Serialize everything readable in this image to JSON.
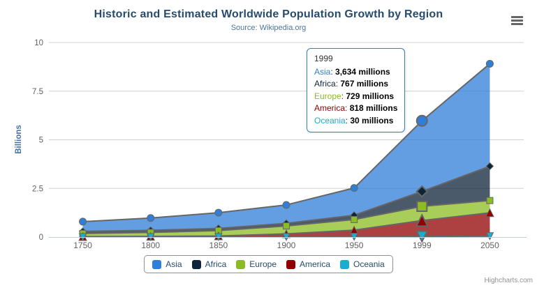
{
  "header": {
    "title": "Historic and Estimated Worldwide Population Growth by Region",
    "subtitle": "Source: Wikipedia.org"
  },
  "credits": "Highcharts.com",
  "y_axis": {
    "title": "Billions",
    "tick_labels": [
      "0",
      "2.5",
      "5",
      "7.5",
      "10"
    ]
  },
  "x_axis": {
    "tick_labels": [
      "1750",
      "1800",
      "1850",
      "1900",
      "1950",
      "1999",
      "2050"
    ]
  },
  "tooltip": {
    "header": "1999",
    "rows": [
      {
        "name": "Asia",
        "value": "3,634 millions",
        "color": "#2f7ed8"
      },
      {
        "name": "Africa",
        "value": "767 millions",
        "color": "#0d233a"
      },
      {
        "name": "Europe",
        "value": "729 millions",
        "color": "#8bbc21"
      },
      {
        "name": "America",
        "value": "818 millions",
        "color": "#910000"
      },
      {
        "name": "Oceania",
        "value": "30 millions",
        "color": "#1aadce"
      }
    ]
  },
  "legend": {
    "items": [
      {
        "label": "Asia",
        "color": "#2f7ed8"
      },
      {
        "label": "Africa",
        "color": "#0d233a"
      },
      {
        "label": "Europe",
        "color": "#8bbc21"
      },
      {
        "label": "America",
        "color": "#910000"
      },
      {
        "label": "Oceania",
        "color": "#1aadce"
      }
    ]
  },
  "colors": {
    "title": "#274b6d",
    "subtitle": "#4d759e",
    "axis_label": "#606060",
    "y_axis_title": "#4572a7",
    "gridline": "#d0d0d0",
    "x_axis_line": "#c0d0e0",
    "series_line": "#666666",
    "legend_border": "#909090",
    "tooltip_border": "#2f7ed8",
    "credits": "#909090",
    "export_icon": "#666666"
  },
  "chart_data": {
    "type": "area",
    "stacking": "normal",
    "title": "Historic and Estimated Worldwide Population Growth by Region",
    "subtitle": "Source: Wikipedia.org",
    "xlabel": "",
    "ylabel": "Billions",
    "unit": "millions",
    "ylim": [
      0,
      10
    ],
    "y_ticks": [
      0,
      2.5,
      5,
      7.5,
      10
    ],
    "grid": true,
    "legend_position": "bottom",
    "categories": [
      "1750",
      "1800",
      "1850",
      "1900",
      "1950",
      "1999",
      "2050"
    ],
    "series": [
      {
        "name": "Asia",
        "color": "#2f7ed8",
        "marker": "circle",
        "values": [
          502,
          635,
          809,
          947,
          1402,
          3634,
          5268
        ]
      },
      {
        "name": "Africa",
        "color": "#0d233a",
        "marker": "diamond",
        "values": [
          106,
          107,
          111,
          133,
          221,
          767,
          1766
        ]
      },
      {
        "name": "Europe",
        "color": "#8bbc21",
        "marker": "square",
        "values": [
          163,
          203,
          276,
          408,
          547,
          729,
          628
        ]
      },
      {
        "name": "America",
        "color": "#910000",
        "marker": "triangle",
        "values": [
          18,
          31,
          54,
          156,
          339,
          818,
          1201
        ]
      },
      {
        "name": "Oceania",
        "color": "#1aadce",
        "marker": "triangle-down",
        "values": [
          2,
          2,
          2,
          6,
          13,
          30,
          46
        ]
      }
    ],
    "stack_bottom_to_top": [
      "Oceania",
      "America",
      "Europe",
      "Africa",
      "Asia"
    ],
    "hovered_category": "1999",
    "fill_opacity": 0.75,
    "line_color": "#666666"
  }
}
